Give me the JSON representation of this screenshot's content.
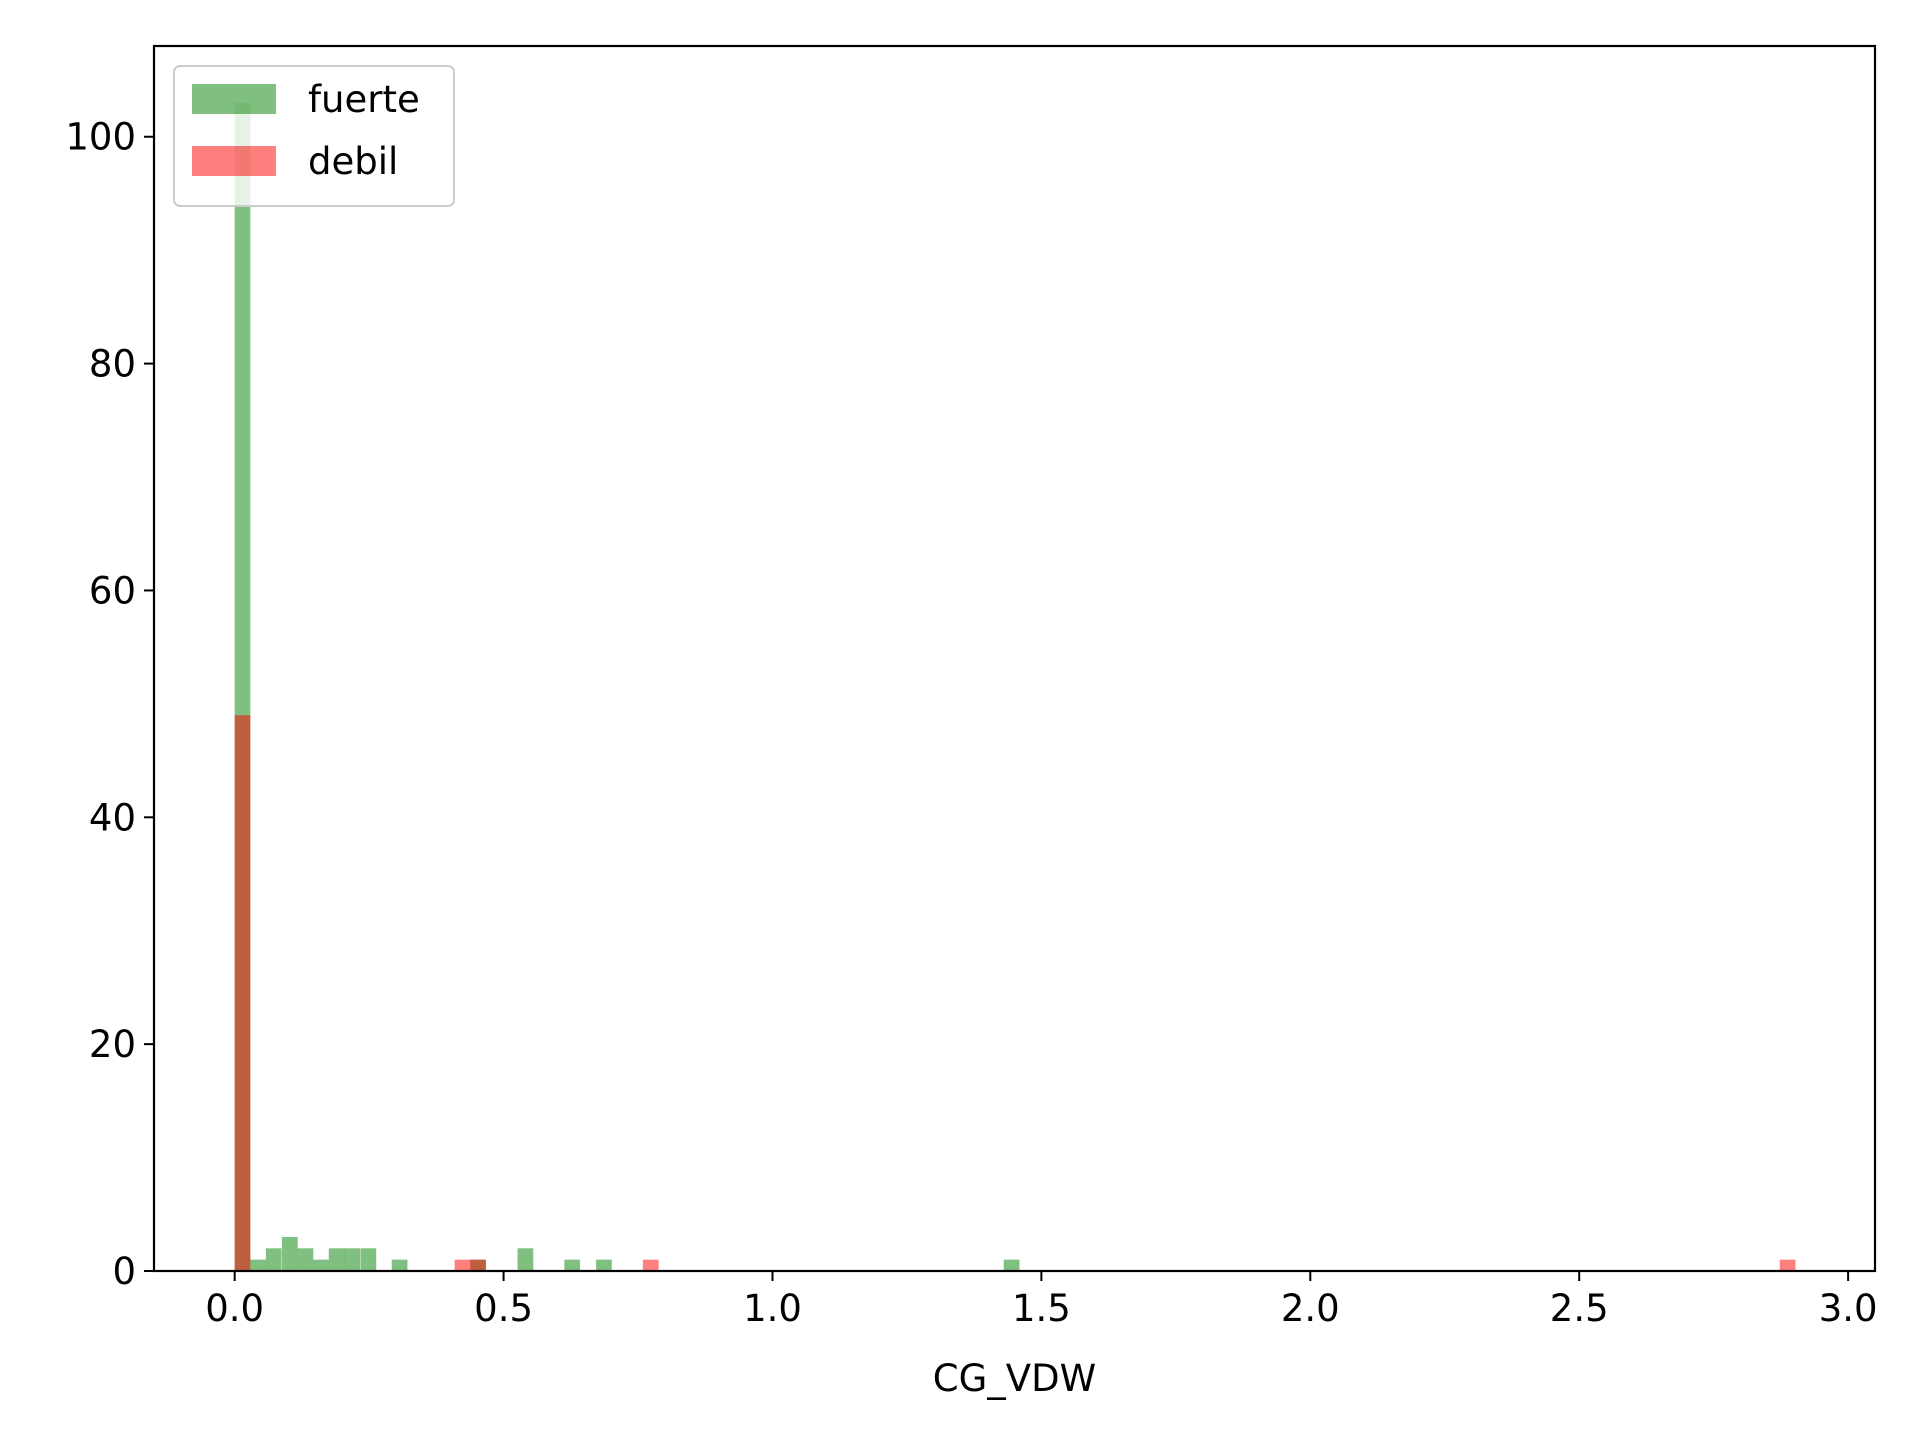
{
  "chart_data": {
    "type": "bar",
    "subtype": "overlapping histogram",
    "title": "",
    "xlabel": "CG_VDW",
    "ylabel": "",
    "xlim": [
      -0.15,
      3.05
    ],
    "ylim": [
      0,
      108
    ],
    "bin_width": 0.0292,
    "x_ticks": [
      {
        "value": 0.0,
        "label": "0.0"
      },
      {
        "value": 0.5,
        "label": "0.5"
      },
      {
        "value": 1.0,
        "label": "1.0"
      },
      {
        "value": 1.5,
        "label": "1.5"
      },
      {
        "value": 2.0,
        "label": "2.0"
      },
      {
        "value": 2.5,
        "label": "2.5"
      },
      {
        "value": 3.0,
        "label": "3.0"
      }
    ],
    "y_ticks": [
      {
        "value": 0,
        "label": "0"
      },
      {
        "value": 20,
        "label": "20"
      },
      {
        "value": 40,
        "label": "40"
      },
      {
        "value": 60,
        "label": "60"
      },
      {
        "value": 80,
        "label": "80"
      },
      {
        "value": 100,
        "label": "100"
      }
    ],
    "grid": false,
    "legend_position": "upper-left",
    "series": [
      {
        "name": "fuerte",
        "color": "#008000",
        "opacity": 0.5,
        "bins": [
          {
            "x": 0.0,
            "count": 103
          },
          {
            "x": 0.029,
            "count": 1
          },
          {
            "x": 0.058,
            "count": 2
          },
          {
            "x": 0.088,
            "count": 3
          },
          {
            "x": 0.117,
            "count": 2
          },
          {
            "x": 0.146,
            "count": 1
          },
          {
            "x": 0.175,
            "count": 2
          },
          {
            "x": 0.204,
            "count": 2
          },
          {
            "x": 0.234,
            "count": 2
          },
          {
            "x": 0.292,
            "count": 1
          },
          {
            "x": 0.438,
            "count": 1
          },
          {
            "x": 0.526,
            "count": 2
          },
          {
            "x": 0.613,
            "count": 1
          },
          {
            "x": 0.672,
            "count": 1
          },
          {
            "x": 1.43,
            "count": 1
          }
        ]
      },
      {
        "name": "debil",
        "color": "#ff0000",
        "opacity": 0.5,
        "bins": [
          {
            "x": 0.0,
            "count": 49
          },
          {
            "x": 0.409,
            "count": 1
          },
          {
            "x": 0.438,
            "count": 1
          },
          {
            "x": 0.759,
            "count": 1
          },
          {
            "x": 2.873,
            "count": 1
          }
        ]
      }
    ]
  }
}
